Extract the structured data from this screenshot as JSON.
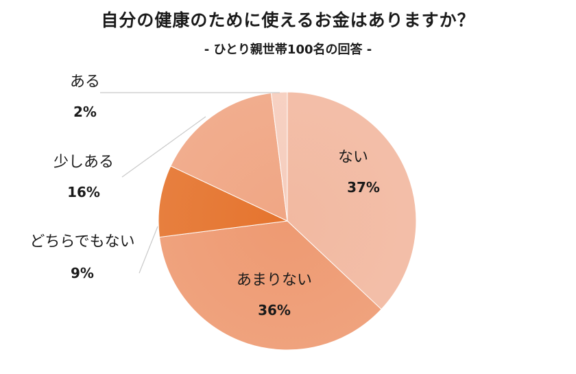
{
  "chart_data": {
    "type": "pie",
    "title": "自分の健康のために使えるお金はありますか？",
    "subtitle": "- ひとり親世帯100名の回答 -",
    "slices": [
      {
        "label": "ない",
        "value": 37,
        "value_label": "37%",
        "color": "#f2b9a1"
      },
      {
        "label": "あまりない",
        "value": 36,
        "value_label": "36%",
        "color": "#ee9a72"
      },
      {
        "label": "どちらでもない",
        "value": 9,
        "value_label": "9%",
        "color": "#e5742e"
      },
      {
        "label": "少しある",
        "value": 16,
        "value_label": "16%",
        "color": "#f0a684"
      },
      {
        "label": "ある",
        "value": 2,
        "value_label": "2%",
        "color": "#f6cdbd"
      }
    ]
  }
}
